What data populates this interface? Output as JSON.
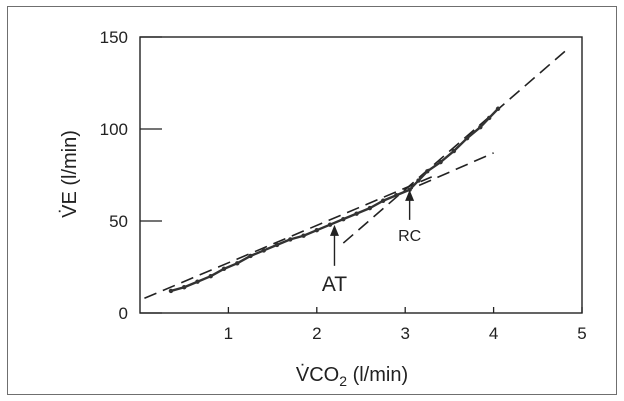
{
  "chart_data": {
    "type": "scatter",
    "title": "",
    "xlabel": {
      "main": "V̇CO",
      "sub": "2",
      "unit": " (l/min)"
    },
    "ylabel": "V̇E (l/min)",
    "xlim": [
      0,
      5
    ],
    "ylim": [
      0,
      150
    ],
    "x_ticks": [
      1,
      2,
      3,
      4,
      5
    ],
    "y_ticks": [
      0,
      50,
      100,
      150
    ],
    "grid": false,
    "legend": "none",
    "colors": {
      "axis": "#222222",
      "data": "#333333",
      "frame": "#6f6f6f"
    },
    "series": [
      {
        "points": [
          {
            "x": 0.35,
            "y": 12
          },
          {
            "x": 0.5,
            "y": 14
          },
          {
            "x": 0.65,
            "y": 17
          },
          {
            "x": 0.8,
            "y": 20
          },
          {
            "x": 0.95,
            "y": 24
          },
          {
            "x": 1.1,
            "y": 27
          },
          {
            "x": 1.25,
            "y": 31
          },
          {
            "x": 1.4,
            "y": 34
          },
          {
            "x": 1.55,
            "y": 37
          },
          {
            "x": 1.7,
            "y": 40
          },
          {
            "x": 1.85,
            "y": 42
          },
          {
            "x": 2.0,
            "y": 45
          },
          {
            "x": 2.15,
            "y": 48
          },
          {
            "x": 2.3,
            "y": 51
          },
          {
            "x": 2.45,
            "y": 54
          },
          {
            "x": 2.6,
            "y": 57
          },
          {
            "x": 2.75,
            "y": 61
          },
          {
            "x": 2.9,
            "y": 64
          },
          {
            "x": 3.05,
            "y": 67
          },
          {
            "x": 3.15,
            "y": 72
          },
          {
            "x": 3.25,
            "y": 77
          },
          {
            "x": 3.4,
            "y": 82
          },
          {
            "x": 3.55,
            "y": 88
          },
          {
            "x": 3.7,
            "y": 95
          },
          {
            "x": 3.85,
            "y": 101
          },
          {
            "x": 3.95,
            "y": 106
          },
          {
            "x": 4.05,
            "y": 111
          }
        ]
      }
    ],
    "fit_lines": [
      {
        "from": [
          0.05,
          8
        ],
        "to": [
          3.3,
          74
        ]
      },
      {
        "from": [
          2.3,
          38
        ],
        "to": [
          4.85,
          144
        ]
      },
      {
        "from": [
          2.95,
          65
        ],
        "to": [
          4.0,
          87
        ]
      }
    ],
    "annotations": [
      {
        "text": "AT",
        "x": 2.2,
        "y": 49
      },
      {
        "text": "RC",
        "x": 3.05,
        "y": 68
      }
    ]
  }
}
